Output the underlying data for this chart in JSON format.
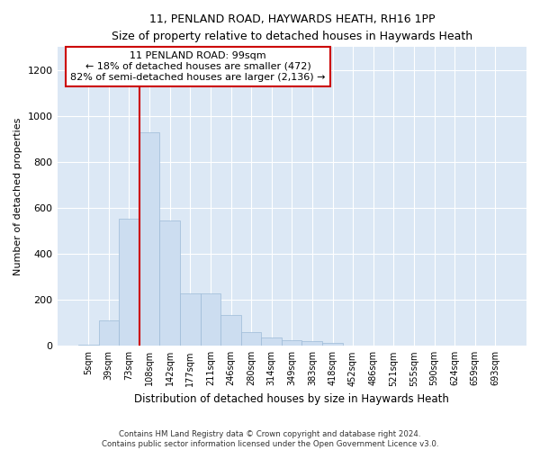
{
  "title1": "11, PENLAND ROAD, HAYWARDS HEATH, RH16 1PP",
  "title2": "Size of property relative to detached houses in Haywards Heath",
  "xlabel": "Distribution of detached houses by size in Haywards Heath",
  "ylabel": "Number of detached properties",
  "bar_color": "#ccddf0",
  "bar_edge_color": "#9dbbd8",
  "background_color": "#dce8f5",
  "grid_color": "#ffffff",
  "annotation_text": "11 PENLAND ROAD: 99sqm\n← 18% of detached houses are smaller (472)\n82% of semi-detached houses are larger (2,136) →",
  "vline_x": 108,
  "vline_color": "#cc0000",
  "annotation_box_color": "#ffffff",
  "annotation_box_edge": "#cc0000",
  "categories": [
    "5sqm",
    "39sqm",
    "73sqm",
    "108sqm",
    "142sqm",
    "177sqm",
    "211sqm",
    "246sqm",
    "280sqm",
    "314sqm",
    "349sqm",
    "383sqm",
    "418sqm",
    "452sqm",
    "486sqm",
    "521sqm",
    "555sqm",
    "590sqm",
    "624sqm",
    "659sqm",
    "693sqm"
  ],
  "bin_edges": [
    5,
    39,
    73,
    108,
    142,
    177,
    211,
    246,
    280,
    314,
    349,
    383,
    418,
    452,
    486,
    521,
    555,
    590,
    624,
    659,
    693,
    727
  ],
  "values": [
    5,
    110,
    555,
    930,
    545,
    230,
    230,
    135,
    58,
    35,
    25,
    20,
    12,
    3,
    2,
    1,
    1,
    0,
    0,
    0,
    0
  ],
  "ylim": [
    0,
    1300
  ],
  "yticks": [
    0,
    200,
    400,
    600,
    800,
    1000,
    1200
  ],
  "footer": "Contains HM Land Registry data © Crown copyright and database right 2024.\nContains public sector information licensed under the Open Government Licence v3.0.",
  "fig_facecolor": "#ffffff"
}
